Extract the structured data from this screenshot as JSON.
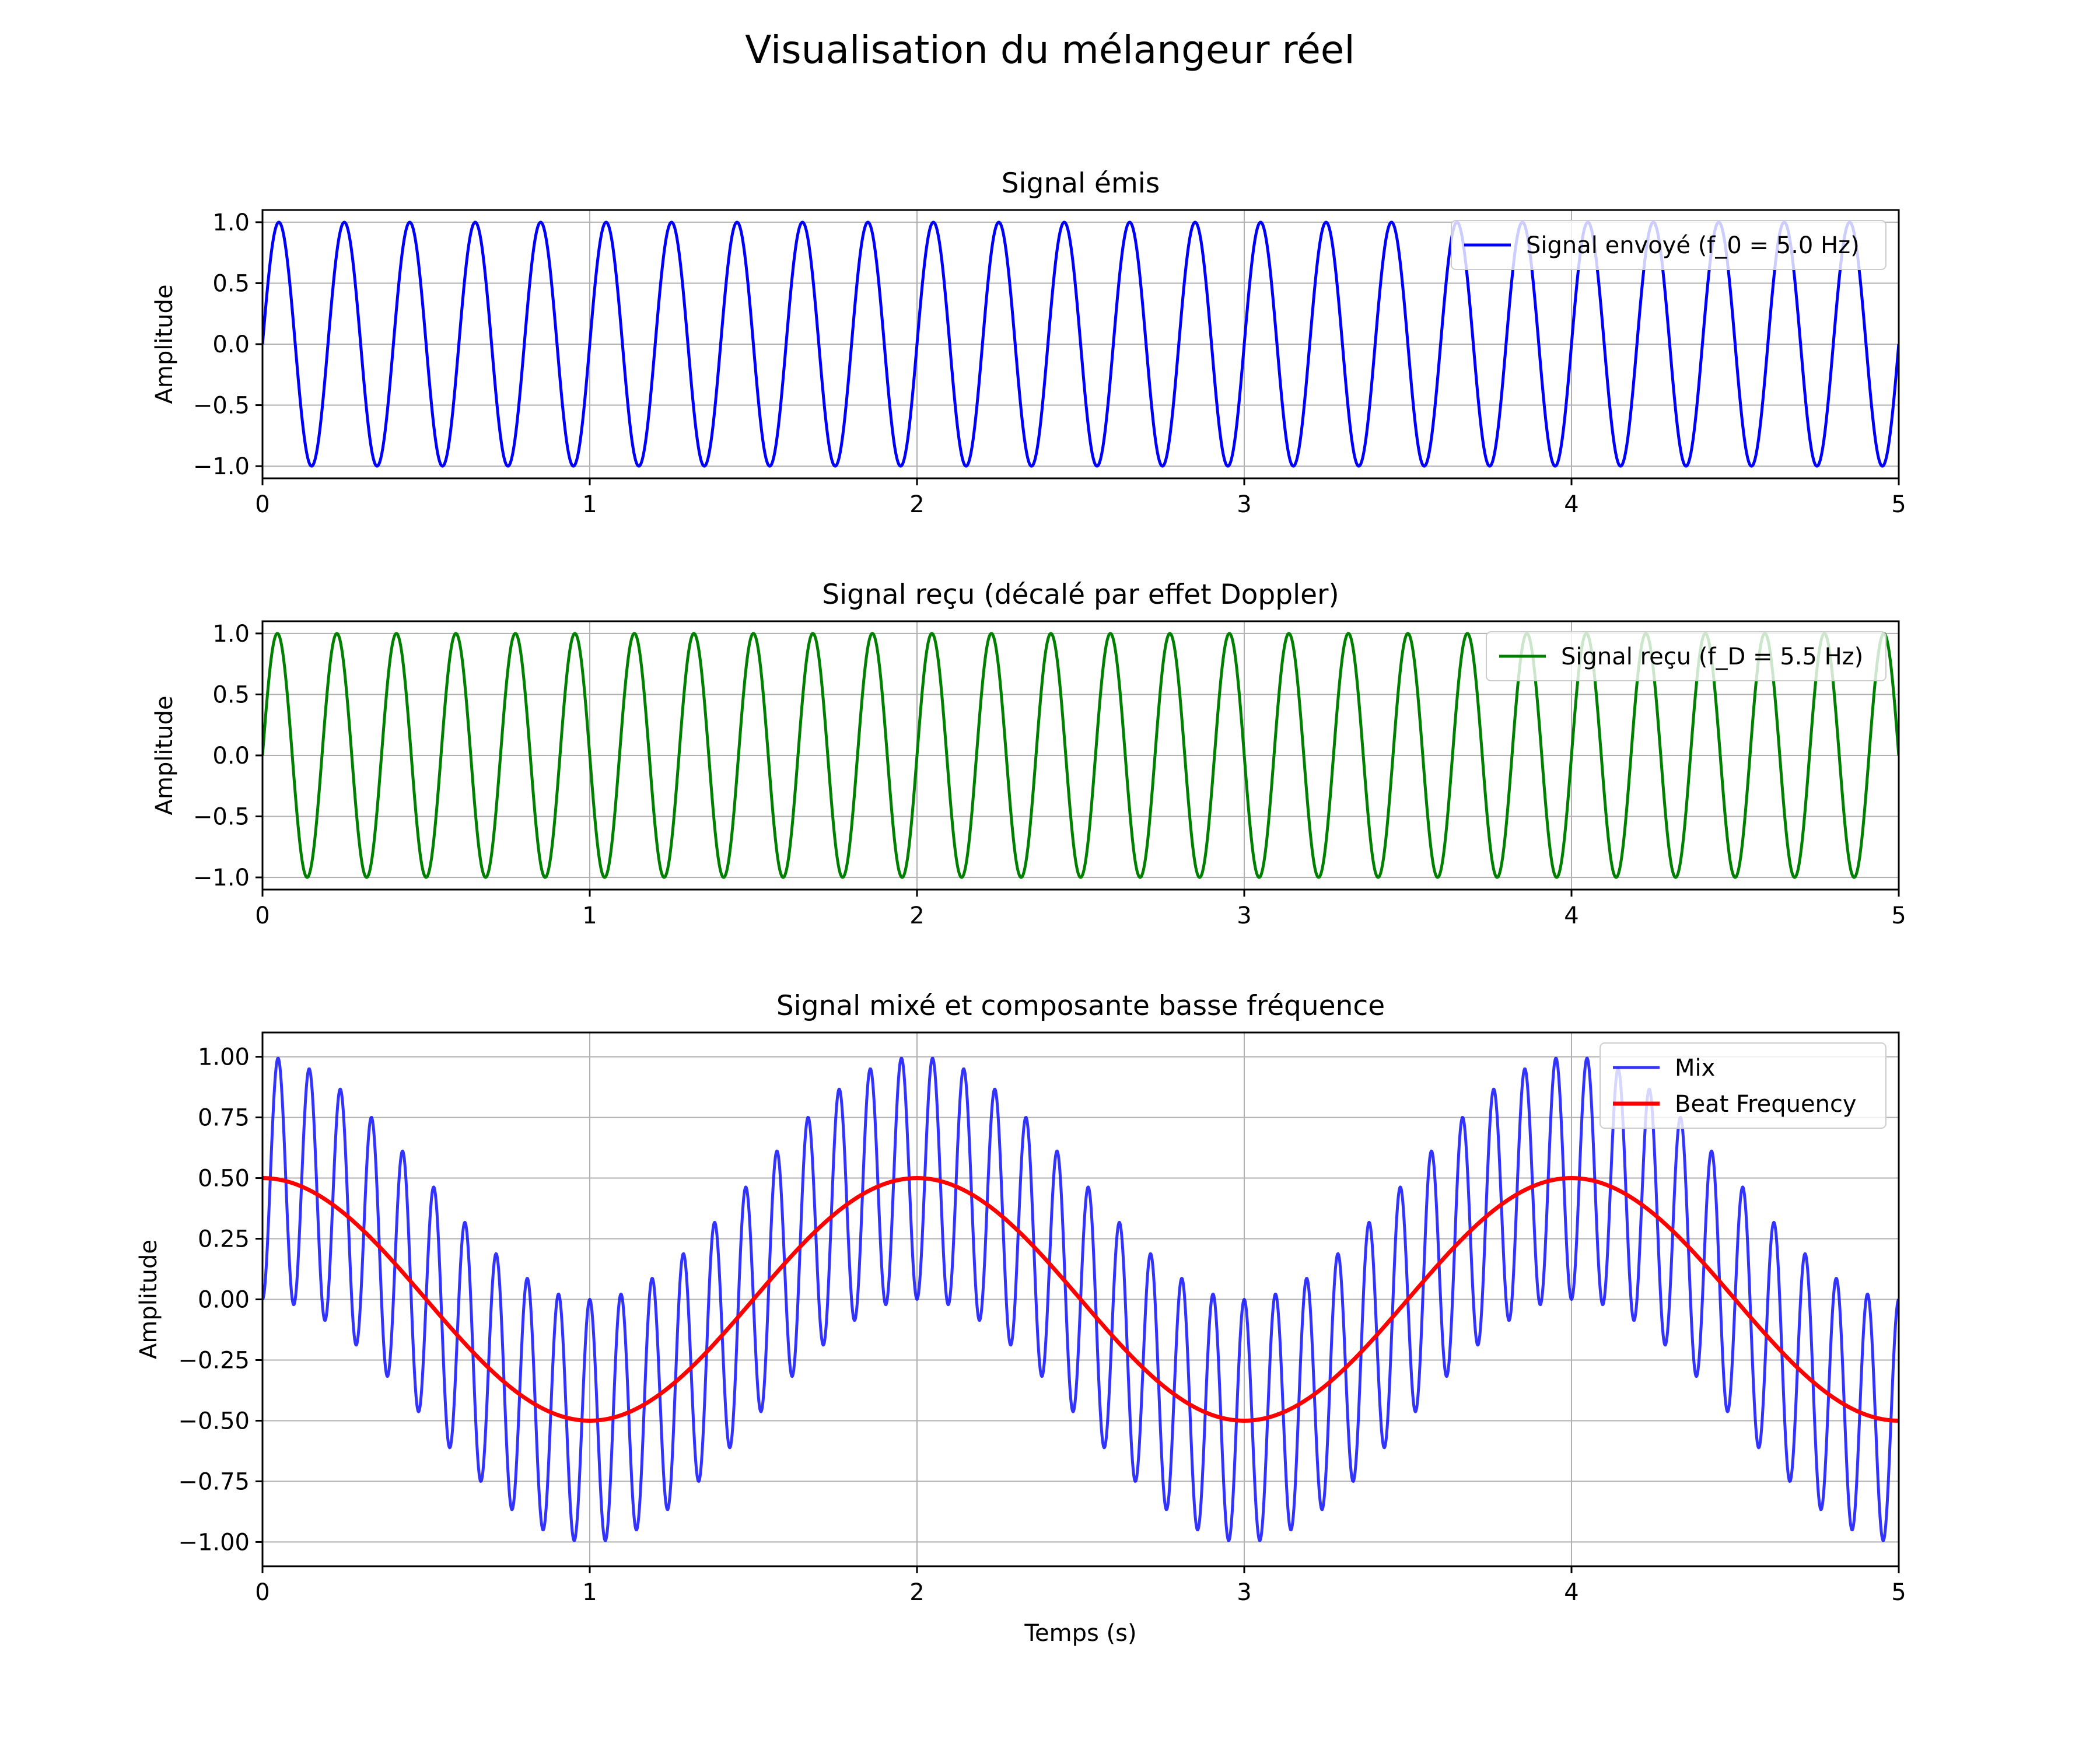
{
  "figure": {
    "title": "Visualisation du mélangeur réel"
  },
  "chart_data": [
    {
      "type": "line",
      "title": "Signal émis",
      "xlabel": "",
      "ylabel": "Amplitude",
      "xlim": [
        0,
        5
      ],
      "ylim": [
        -1.1,
        1.1
      ],
      "xticks": [
        "0",
        "1",
        "2",
        "3",
        "4",
        "5"
      ],
      "yticks": [
        "1.0",
        "0.5",
        "0.0",
        "−0.5",
        "−1.0"
      ],
      "grid": true,
      "legend_position": "upper right",
      "series": [
        {
          "name": "Signal envoyé (f_0 = 5.0 Hz)",
          "color": "#0000ff",
          "function": "sin",
          "frequency_hz": 5.0,
          "amplitude": 1.0,
          "x_start": 0,
          "x_end": 5
        }
      ]
    },
    {
      "type": "line",
      "title": "Signal reçu (décalé par effet Doppler)",
      "xlabel": "",
      "ylabel": "Amplitude",
      "xlim": [
        0,
        5
      ],
      "ylim": [
        -1.1,
        1.1
      ],
      "xticks": [
        "0",
        "1",
        "2",
        "3",
        "4",
        "5"
      ],
      "yticks": [
        "1.0",
        "0.5",
        "0.0",
        "−0.5",
        "−1.0"
      ],
      "grid": true,
      "legend_position": "upper right",
      "series": [
        {
          "name": "Signal reçu (f_D = 5.5 Hz)",
          "color": "#008000",
          "function": "sin",
          "frequency_hz": 5.5,
          "amplitude": 1.0,
          "x_start": 0,
          "x_end": 5
        }
      ]
    },
    {
      "type": "line",
      "title": "Signal mixé et composante basse fréquence",
      "xlabel": "Temps (s)",
      "ylabel": "Amplitude",
      "xlim": [
        0,
        5
      ],
      "ylim": [
        -1.1,
        1.1
      ],
      "xticks": [
        "0",
        "1",
        "2",
        "3",
        "4",
        "5"
      ],
      "yticks": [
        "1.00",
        "0.75",
        "0.50",
        "0.25",
        "0.00",
        "−0.25",
        "−0.50",
        "−0.75",
        "−1.00"
      ],
      "grid": true,
      "legend_position": "upper right",
      "series": [
        {
          "name": "Mix",
          "color": "#0000ff",
          "function": "product",
          "factors_hz": [
            5.0,
            5.5
          ],
          "x_start": 0,
          "x_end": 5
        },
        {
          "name": "Beat Frequency",
          "color": "#ff0000",
          "function": "cos",
          "frequency_hz": 0.5,
          "amplitude": 0.5,
          "x_start": 0,
          "x_end": 5
        }
      ]
    }
  ]
}
